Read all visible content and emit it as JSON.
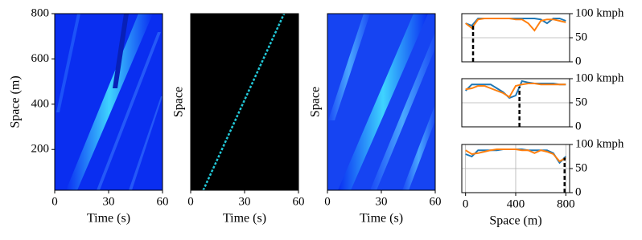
{
  "chart_data": [
    {
      "type": "heatmap",
      "xlabel": "Time (s)",
      "ylabel": "Space (m)",
      "xlim": [
        0,
        60
      ],
      "xticks": [
        0,
        30,
        60
      ],
      "ylim": [
        20,
        800
      ],
      "yticks": [
        200,
        400,
        600,
        800
      ]
    },
    {
      "type": "heatmap",
      "xlabel": "Time (s)",
      "ylabel": "Space",
      "xlim": [
        0,
        60
      ],
      "xticks": [
        0,
        30,
        60
      ],
      "ylim": [
        20,
        800
      ],
      "trajectory": {
        "x": [
          7,
          52
        ],
        "values": [
          20,
          800
        ],
        "color": "#22c8d8"
      }
    },
    {
      "type": "heatmap",
      "xlabel": "Time (s)",
      "ylabel": "Space",
      "xlim": [
        0,
        60
      ],
      "xticks": [
        0,
        30,
        60
      ],
      "ylim": [
        20,
        800
      ]
    },
    {
      "type": "line",
      "x": [
        0,
        50,
        100,
        150,
        200,
        250,
        300,
        350,
        400,
        450,
        500,
        550,
        600,
        650,
        700,
        750,
        800
      ],
      "xlim": [
        -30,
        830
      ],
      "ylim": [
        0,
        100
      ],
      "yticks": [
        0,
        50,
        {
          "value": 100,
          "label": "100 kmph"
        }
      ],
      "grid": true,
      "marker_x": 60,
      "series": [
        {
          "color": "#1f77b4",
          "values": [
            80,
            75,
            90,
            90,
            90,
            90,
            90,
            90,
            90,
            90,
            90,
            90,
            88,
            80,
            90,
            90,
            85
          ]
        },
        {
          "color": "#ff7f0e",
          "values": [
            80,
            70,
            88,
            90,
            90,
            90,
            90,
            90,
            88,
            88,
            80,
            65,
            85,
            88,
            88,
            85,
            82
          ]
        }
      ]
    },
    {
      "type": "line",
      "x": [
        0,
        50,
        100,
        150,
        200,
        250,
        300,
        350,
        400,
        450,
        500,
        550,
        600,
        650,
        700,
        750,
        800
      ],
      "xlim": [
        -30,
        830
      ],
      "ylim": [
        0,
        100
      ],
      "yticks": [
        0,
        50,
        {
          "value": 100,
          "label": "100 kmph"
        }
      ],
      "grid": true,
      "marker_x": 430,
      "series": [
        {
          "color": "#1f77b4",
          "values": [
            75,
            88,
            88,
            88,
            88,
            80,
            72,
            60,
            65,
            95,
            92,
            90,
            90,
            90,
            90,
            88,
            88
          ]
        },
        {
          "color": "#ff7f0e",
          "values": [
            78,
            80,
            85,
            85,
            80,
            75,
            70,
            62,
            85,
            88,
            90,
            90,
            88,
            88,
            88,
            88,
            88
          ]
        }
      ]
    },
    {
      "type": "line",
      "x": [
        0,
        50,
        100,
        150,
        200,
        250,
        300,
        350,
        400,
        450,
        500,
        550,
        600,
        650,
        700,
        750,
        800
      ],
      "xlim": [
        -30,
        830
      ],
      "ylim": [
        0,
        100
      ],
      "yticks": [
        0,
        50,
        {
          "value": 100,
          "label": "100 kmph"
        }
      ],
      "xticks": [
        0,
        400,
        800
      ],
      "xlabel": "Space (m)",
      "grid": true,
      "marker_x": 790,
      "series": [
        {
          "color": "#1f77b4",
          "values": [
            80,
            75,
            88,
            88,
            88,
            88,
            90,
            90,
            90,
            90,
            88,
            88,
            88,
            88,
            82,
            62,
            75
          ]
        },
        {
          "color": "#ff7f0e",
          "values": [
            88,
            80,
            82,
            85,
            88,
            90,
            90,
            90,
            90,
            88,
            88,
            82,
            88,
            85,
            80,
            65,
            72
          ]
        }
      ]
    }
  ]
}
